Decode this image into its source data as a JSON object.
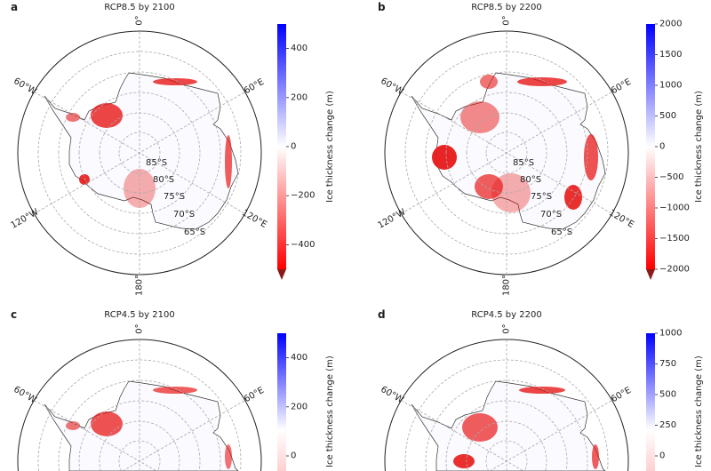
{
  "panels": [
    {
      "letter": "a",
      "title": "RCP8.5 by 2100",
      "colorbar": {
        "label": "Ice thickness change (m)",
        "range": [
          -500,
          500
        ],
        "ticks": [
          400,
          200,
          0,
          -200,
          -400
        ],
        "tick_labels": [
          "400",
          "200",
          "0",
          "−200",
          "−400"
        ],
        "extend": "min"
      },
      "meridian_labels": [
        "0°",
        "60°E",
        "120°E",
        "180°",
        "120°W",
        "60°W"
      ],
      "latitude_labels": [
        "85°S",
        "80°S",
        "75°S",
        "70°S",
        "65°S"
      ]
    },
    {
      "letter": "b",
      "title": "RCP8.5 by 2200",
      "colorbar": {
        "label": "Ice thickness change (m)",
        "range": [
          -2000,
          2000
        ],
        "ticks": [
          2000,
          1500,
          1000,
          500,
          0,
          -500,
          -1000,
          -1500,
          -2000
        ],
        "tick_labels": [
          "2000",
          "1500",
          "1000",
          "500",
          "0",
          "−500",
          "−1000",
          "−1500",
          "−2000"
        ],
        "extend": "min"
      },
      "meridian_labels": [
        "0°",
        "60°E",
        "120°E",
        "180°",
        "120°W",
        "60°W"
      ],
      "latitude_labels": [
        "85°S",
        "80°S",
        "75°S",
        "70°S",
        "65°S"
      ]
    },
    {
      "letter": "c",
      "title": "RCP4.5 by 2100",
      "colorbar": {
        "label": "Ice thickness change (m)",
        "range": [
          -500,
          500
        ],
        "ticks": [
          400,
          200,
          0
        ],
        "tick_labels": [
          "400",
          "200",
          "0"
        ],
        "extend": "min"
      },
      "meridian_labels": [
        "0°",
        "60°E",
        "60°W"
      ],
      "latitude_labels": []
    },
    {
      "letter": "d",
      "title": "RCP4.5 by 2200",
      "colorbar": {
        "label": "Ice thickness change (m)",
        "range": [
          -1000,
          1000
        ],
        "ticks": [
          1000,
          750,
          500,
          250,
          0
        ],
        "tick_labels": [
          "1000",
          "750",
          "500",
          "250",
          "0"
        ],
        "extend": "min"
      },
      "meridian_labels": [
        "0°",
        "60°E",
        "60°W"
      ],
      "latitude_labels": []
    }
  ],
  "colors": {
    "positive": "#0000ff",
    "zero": "#ffffff",
    "negative": "#ff0000",
    "extend_min": "#8b1a1a",
    "coastline": "#333333",
    "grid": "#aaaaaa"
  }
}
